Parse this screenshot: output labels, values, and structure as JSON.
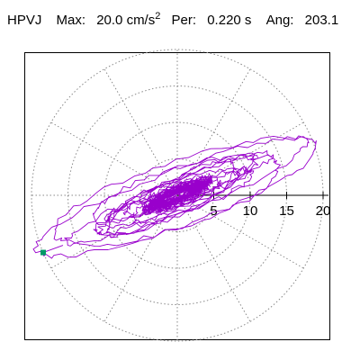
{
  "header": {
    "station": "HPVJ",
    "max_label": "Max:",
    "max_value": "20.0 cm/s",
    "max_exp": "2",
    "per_label": "Per:",
    "per_value": "0.220 s",
    "ang_label": "Ang:",
    "ang_value": "203.1"
  },
  "chart_data": {
    "type": "polar-orbit",
    "title": "",
    "radial_ticks": [
      "5",
      "10",
      "15",
      "20"
    ],
    "r_max": 20,
    "grid": true,
    "grid_style": "dotted",
    "spoke_angles_deg": [
      0,
      30,
      60,
      90,
      120,
      150,
      180,
      210,
      240,
      270,
      300,
      330
    ],
    "series": [
      {
        "color": "#9900cc",
        "peak_marker": {
          "angle_deg": 203.1,
          "r": 20.0,
          "color": "#009966"
        }
      }
    ]
  }
}
